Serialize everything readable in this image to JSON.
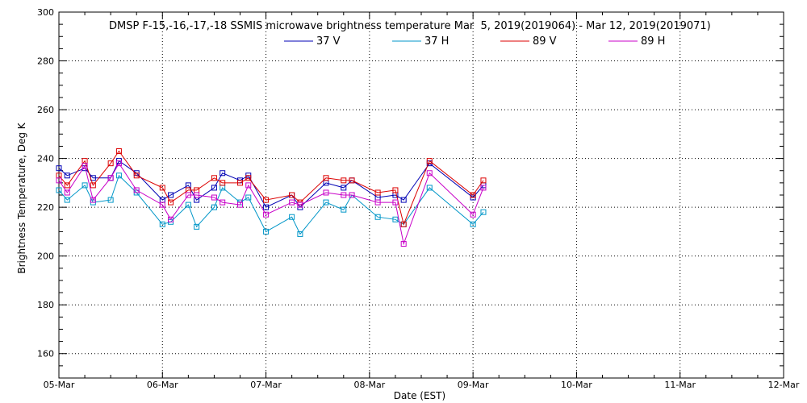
{
  "chart_data": {
    "type": "line",
    "title": "DMSP F-15,-16,-17,-18 SSMIS microwave brightness temperature Mar  5, 2019(2019064) - Mar 12, 2019(2019071)",
    "xlabel": "Date (EST)",
    "ylabel": "Brightness Temperature, Deg K",
    "xlim": [
      0,
      7
    ],
    "ylim": [
      150,
      300
    ],
    "x_tick_labels": [
      "05-Mar",
      "06-Mar",
      "07-Mar",
      "08-Mar",
      "09-Mar",
      "10-Mar",
      "11-Mar",
      "12-Mar"
    ],
    "y_tick_values": [
      160,
      180,
      200,
      220,
      240,
      260,
      280,
      300
    ],
    "grid": true,
    "legend_position": "top-center",
    "x_unit": "days since 05-Mar 00:00",
    "series": [
      {
        "name": "37 V",
        "color": "#0000b4",
        "x": [
          0.0,
          0.08,
          0.25,
          0.33,
          0.5,
          0.58,
          0.75,
          1.0,
          1.08,
          1.25,
          1.33,
          1.5,
          1.58,
          1.75,
          1.83,
          2.0,
          2.25,
          2.33,
          2.58,
          2.75,
          2.83,
          3.08,
          3.25,
          3.33,
          3.58,
          4.0,
          4.1
        ],
        "values": [
          236,
          233,
          236,
          232,
          232,
          239,
          234,
          223,
          225,
          229,
          223,
          228,
          234,
          231,
          233,
          220,
          225,
          220,
          230,
          228,
          231,
          224,
          225,
          223,
          238,
          224,
          229
        ]
      },
      {
        "name": "37 H",
        "color": "#0096c8",
        "x": [
          0.0,
          0.08,
          0.25,
          0.33,
          0.5,
          0.58,
          0.75,
          1.0,
          1.08,
          1.25,
          1.33,
          1.5,
          1.58,
          1.75,
          1.83,
          2.0,
          2.25,
          2.33,
          2.58,
          2.75,
          2.83,
          3.08,
          3.25,
          3.33,
          3.58,
          4.0,
          4.1
        ],
        "values": [
          227,
          223,
          229,
          222,
          223,
          233,
          226,
          213,
          214,
          221,
          212,
          220,
          228,
          222,
          224,
          210,
          216,
          209,
          222,
          219,
          225,
          216,
          215,
          213,
          228,
          213,
          218
        ]
      },
      {
        "name": "89 V",
        "color": "#dc0000",
        "x": [
          0.0,
          0.08,
          0.25,
          0.33,
          0.5,
          0.58,
          0.75,
          1.0,
          1.08,
          1.25,
          1.33,
          1.5,
          1.58,
          1.75,
          1.83,
          2.0,
          2.25,
          2.33,
          2.58,
          2.75,
          2.83,
          3.08,
          3.25,
          3.33,
          3.58,
          4.0,
          4.1
        ],
        "values": [
          233,
          229,
          239,
          229,
          238,
          243,
          233,
          228,
          222,
          227,
          227,
          232,
          230,
          230,
          232,
          223,
          225,
          222,
          232,
          231,
          231,
          226,
          227,
          213,
          239,
          225,
          231
        ]
      },
      {
        "name": "89 H",
        "color": "#c800c8",
        "x": [
          0.0,
          0.08,
          0.25,
          0.33,
          0.5,
          0.58,
          0.75,
          1.0,
          1.08,
          1.25,
          1.33,
          1.5,
          1.58,
          1.75,
          1.83,
          2.0,
          2.25,
          2.33,
          2.58,
          2.75,
          2.83,
          3.08,
          3.25,
          3.33,
          3.58,
          4.0,
          4.1
        ],
        "values": [
          231,
          226,
          237,
          223,
          232,
          238,
          227,
          221,
          215,
          225,
          225,
          224,
          222,
          221,
          229,
          217,
          222,
          221,
          226,
          225,
          225,
          222,
          222,
          205,
          234,
          217,
          228
        ]
      }
    ]
  }
}
